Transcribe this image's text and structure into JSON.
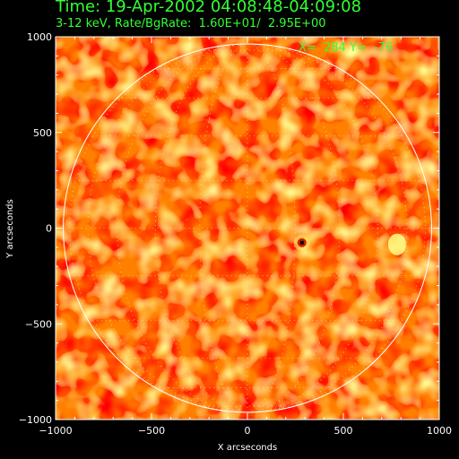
{
  "header": {
    "title": "Time: 19-Apr-2002 04:08:48-04:09:08",
    "subtitle": "3-12 keV, Rate/BgRate:  1.60E+01/  2.95E+00"
  },
  "overlay": {
    "cursor_readout": "X=  284 Y=  -76"
  },
  "colors": {
    "background": "#000000",
    "text": "#33ff33",
    "axis": "#ffffff",
    "map_low": "#ff8000",
    "map_high": "#ffff40",
    "source_marker": "#000000"
  },
  "chart_data": {
    "type": "heatmap",
    "title": "",
    "xlabel": "X arcseconds",
    "ylabel": "Y arcseconds",
    "xlim": [
      -1000,
      1000
    ],
    "ylim": [
      -1000,
      1000
    ],
    "x_ticks": [
      -1000,
      -500,
      0,
      500,
      1000
    ],
    "y_ticks": [
      -1000,
      -500,
      0,
      500,
      1000
    ],
    "solar_limb_radius_arcsec": 960,
    "grid_on_disk": true,
    "sources": [
      {
        "x": 284,
        "y": -76,
        "kind": "peak"
      },
      {
        "x": 780,
        "y": -85,
        "kind": "bright-spot"
      }
    ]
  }
}
